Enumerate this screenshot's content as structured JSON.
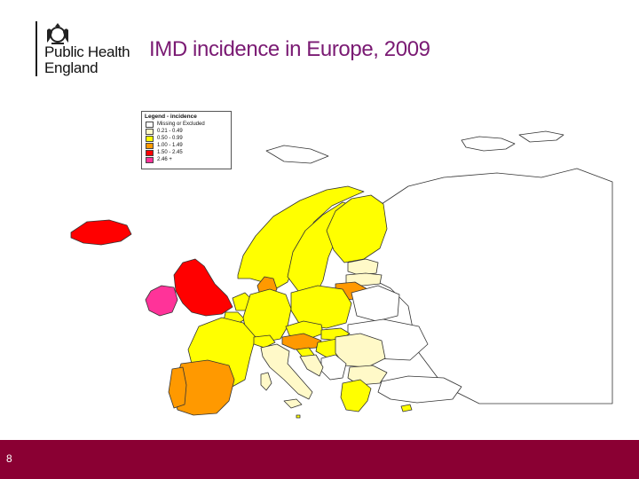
{
  "logo": {
    "line1": "Public Health",
    "line2": "England"
  },
  "title": "IMD incidence in Europe, 2009",
  "legend": {
    "title": "Legend - incidence",
    "items": [
      {
        "label": "Missing or Excluded",
        "color": "#ffffff"
      },
      {
        "label": "0.21 - 0.49",
        "color": "#fff9c8"
      },
      {
        "label": "0.50 - 0.99",
        "color": "#ffff00"
      },
      {
        "label": "1.00 - 1.49",
        "color": "#ff9900"
      },
      {
        "label": "1.50 - 2.45",
        "color": "#ff0000"
      },
      {
        "label": "2.46 +",
        "color": "#ff3399"
      }
    ]
  },
  "page_number": "8",
  "colors": {
    "footer": "#8a0033",
    "title": "#7a1a73",
    "missing": "#ffffff",
    "low": "#fff9c8",
    "mid": "#ffff00",
    "high": "#ff9900",
    "very_high": "#ff0000",
    "top": "#ff3399"
  }
}
